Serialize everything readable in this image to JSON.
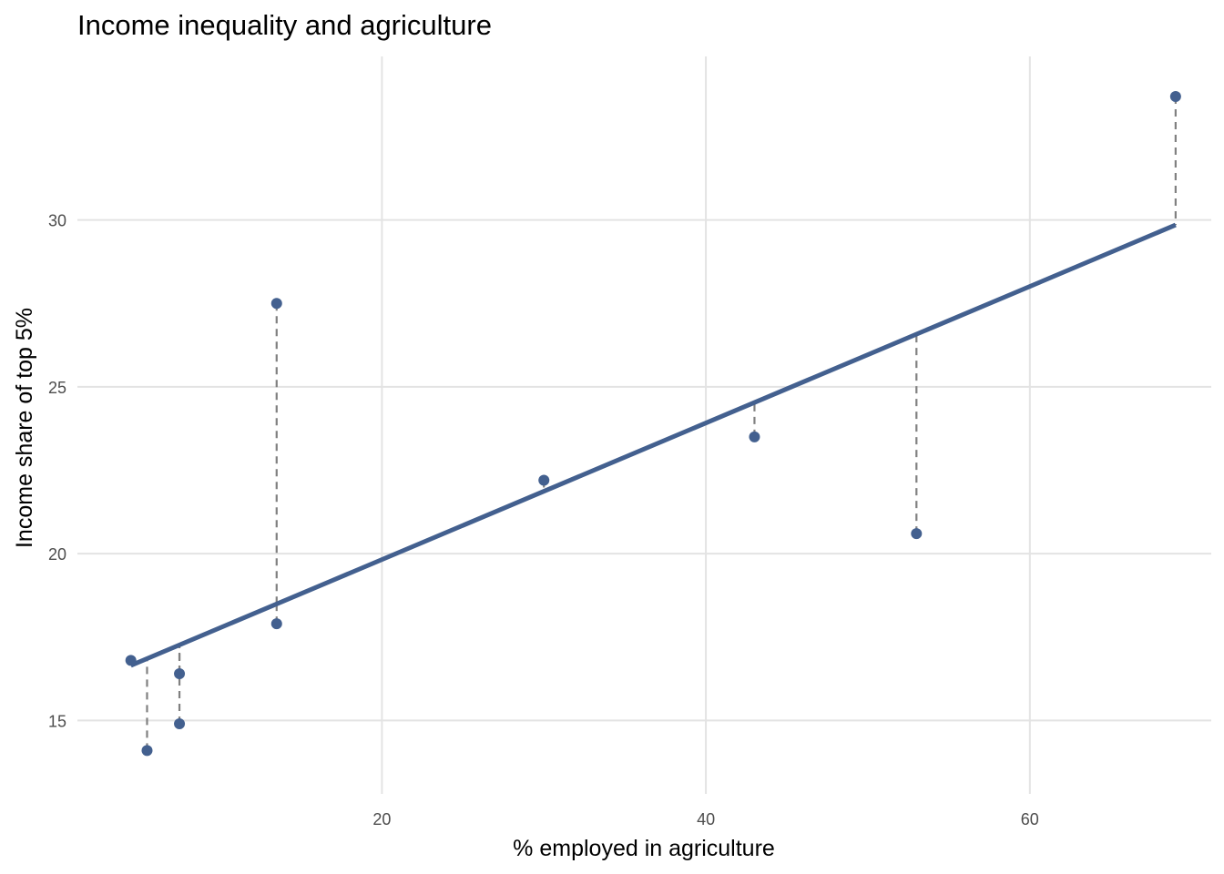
{
  "chart_data": {
    "type": "scatter",
    "title": "Income inequality and agriculture",
    "xlabel": "% employed in agriculture",
    "ylabel": "Income share of top 5%",
    "xlim": [
      1.2,
      71.2
    ],
    "ylim": [
      12.8,
      34.9
    ],
    "x_ticks": [
      20,
      40,
      60
    ],
    "y_ticks": [
      15,
      20,
      25,
      30
    ],
    "grid": true,
    "legend": "none",
    "point_color": "#43608f",
    "line_color": "#43608f",
    "residual_color": "#808080",
    "points": [
      {
        "x": 4.5,
        "y": 16.8
      },
      {
        "x": 5.5,
        "y": 14.1
      },
      {
        "x": 7.5,
        "y": 16.4
      },
      {
        "x": 7.5,
        "y": 14.9
      },
      {
        "x": 13.5,
        "y": 27.5
      },
      {
        "x": 13.5,
        "y": 17.9
      },
      {
        "x": 30.0,
        "y": 22.2
      },
      {
        "x": 43.0,
        "y": 23.5
      },
      {
        "x": 53.0,
        "y": 20.6
      },
      {
        "x": 69.0,
        "y": 33.7
      }
    ],
    "fit": {
      "x": [
        4.5,
        69.0
      ],
      "y": [
        16.65,
        29.85
      ]
    }
  }
}
